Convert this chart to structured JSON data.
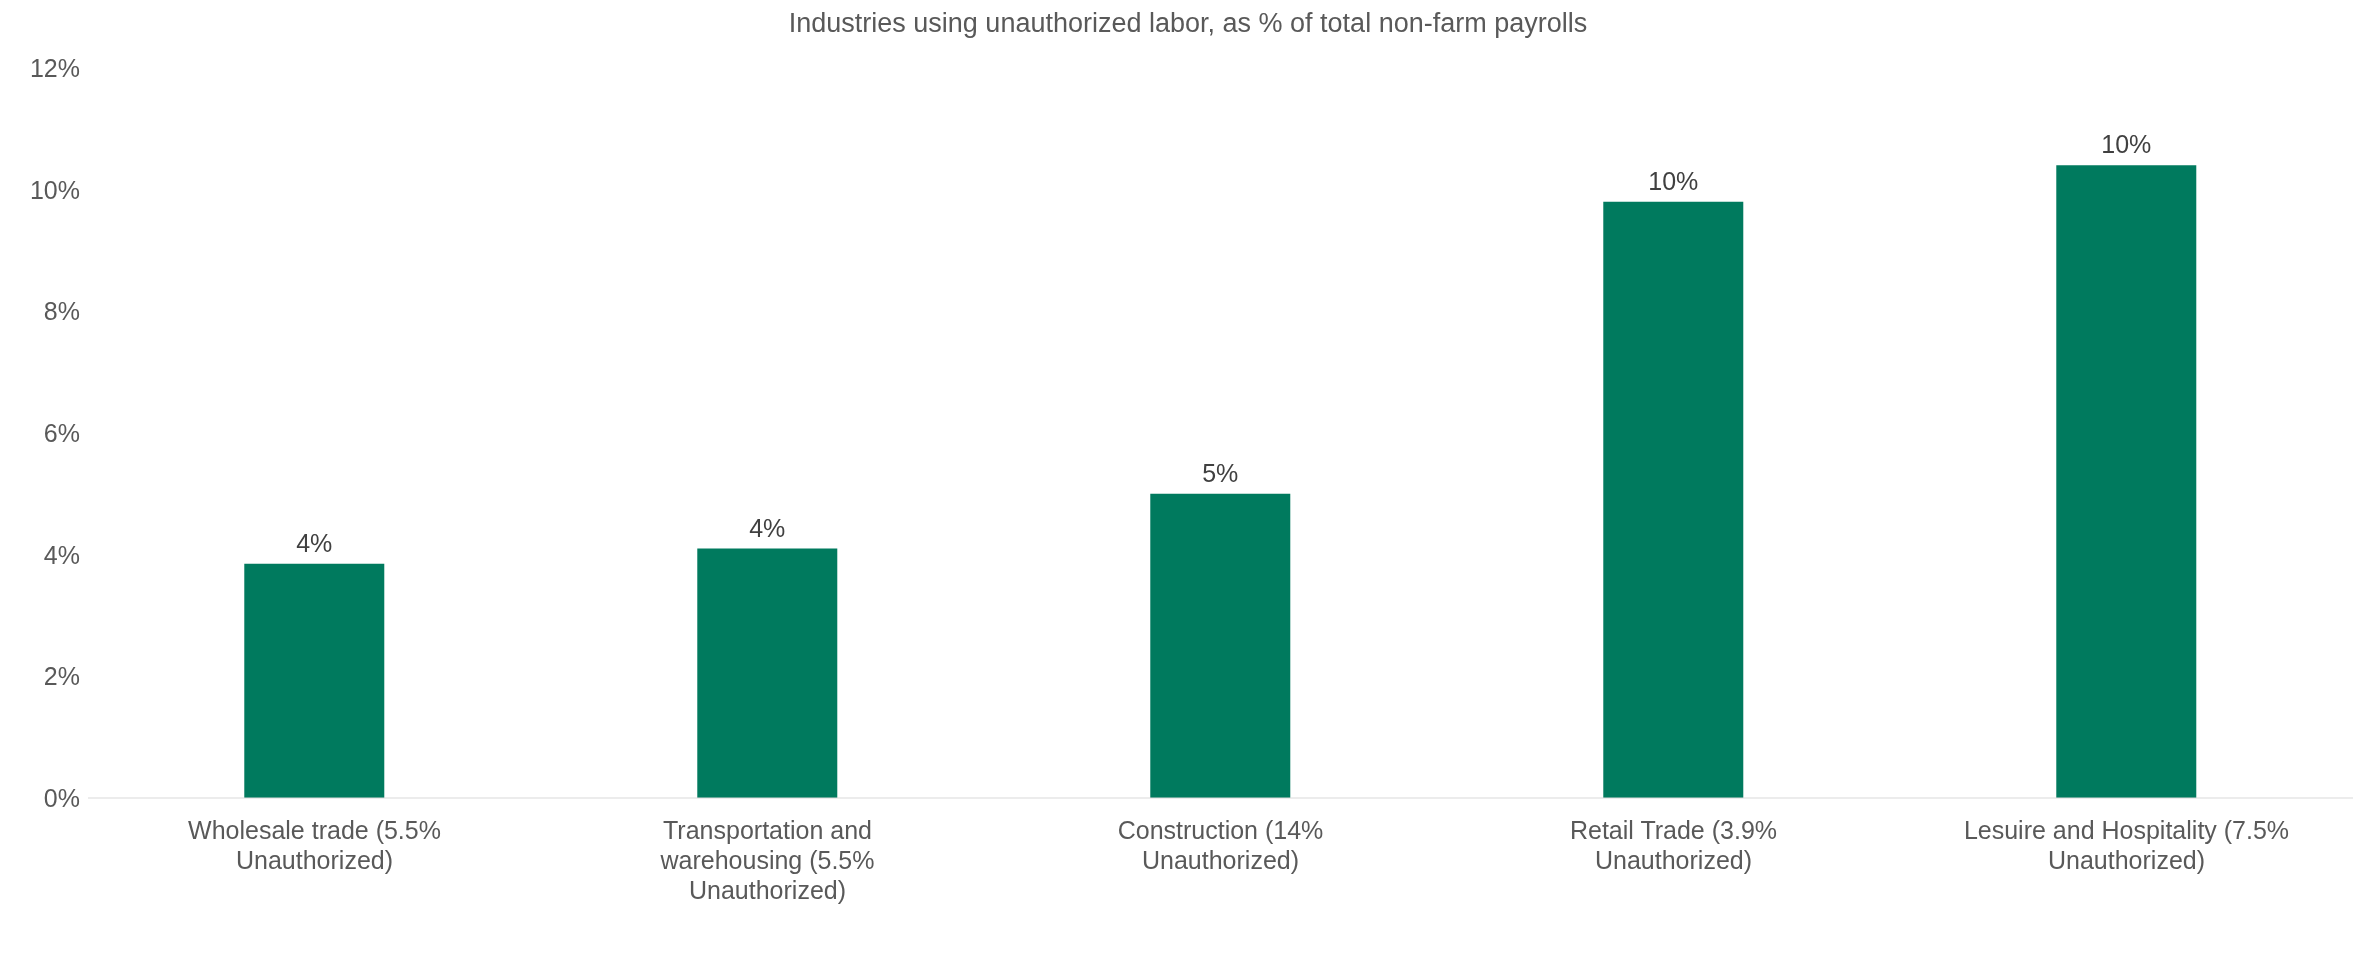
{
  "chart_data": {
    "type": "bar",
    "title": "Industries using unauthorized labor, as % of total non-farm payrolls",
    "categories": [
      "Wholesale trade (5.5% Unauthorized)",
      "Transportation and warehousing (5.5% Unauthorized)",
      "Construction (14% Unauthorized)",
      "Retail Trade (3.9% Unauthorized)",
      "Lesuire and Hospitality (7.5% Unauthorized)"
    ],
    "values": [
      3.85,
      4.1,
      5.0,
      9.8,
      10.4
    ],
    "value_labels": [
      "4%",
      "4%",
      "5%",
      "10%",
      "10%"
    ],
    "color": "#007a5e",
    "ylim": [
      0,
      12
    ],
    "yticks": [
      {
        "value": 0,
        "label": "0%"
      },
      {
        "value": 2,
        "label": "2%"
      },
      {
        "value": 4,
        "label": "4%"
      },
      {
        "value": 6,
        "label": "6%"
      },
      {
        "value": 8,
        "label": "8%"
      },
      {
        "value": 10,
        "label": "10%"
      },
      {
        "value": 12,
        "label": "12%"
      }
    ],
    "grid": false
  }
}
